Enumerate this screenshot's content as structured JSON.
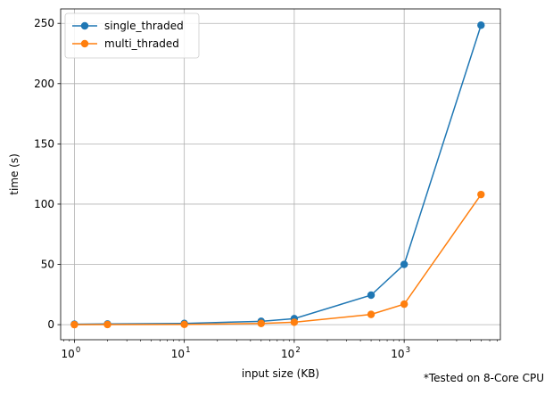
{
  "chart_data": {
    "type": "line",
    "xlabel": "input size (KB)",
    "ylabel": "time (s)",
    "xscale": "log",
    "xlim": [
      0.75,
      7500
    ],
    "ylim": [
      -12.5,
      262
    ],
    "x_ticks": [
      {
        "value": 1,
        "base": "10",
        "exp": "0"
      },
      {
        "value": 10,
        "base": "10",
        "exp": "1"
      },
      {
        "value": 100,
        "base": "10",
        "exp": "2"
      },
      {
        "value": 1000,
        "base": "10",
        "exp": "3"
      }
    ],
    "y_ticks": [
      0,
      50,
      100,
      150,
      200,
      250
    ],
    "grid": true,
    "legend_position": "top-left",
    "x": [
      1,
      2,
      10,
      50,
      100,
      500,
      1000,
      5000
    ],
    "series": [
      {
        "name": "single_thraded",
        "color": "#1f77b4",
        "values": [
          0.4,
          0.6,
          1.0,
          2.8,
          5.0,
          24.5,
          50.0,
          248.5
        ]
      },
      {
        "name": "multi_thraded",
        "color": "#ff7f0e",
        "values": [
          0.0,
          0.1,
          0.2,
          1.0,
          2.0,
          8.5,
          17.0,
          108.0
        ]
      }
    ]
  },
  "note": "*Tested on 8-Core CPU"
}
